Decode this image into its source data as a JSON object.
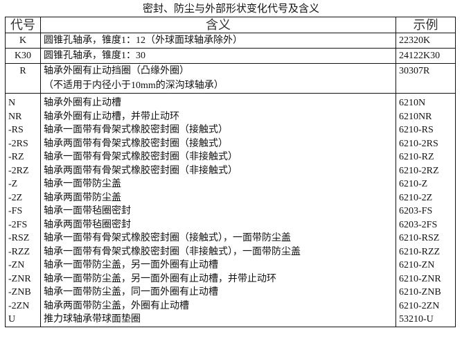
{
  "title": "密封、防尘与外部形状变化代号及含义",
  "headers": {
    "code": "代号",
    "meaning": "含义",
    "example": "示例"
  },
  "top_rows": [
    {
      "code": "K",
      "meaning": [
        "圆锥孔轴承，锥度1：12（外球面球轴承除外）"
      ],
      "example": "22320K"
    },
    {
      "code": "K30",
      "meaning": [
        "圆锥孔轴承，锥度1：30"
      ],
      "example": "24122K30"
    },
    {
      "code": "R",
      "meaning": [
        "轴承外圈有止动挡圈（凸缘外圈）",
        "（不适用于内径小于10mm的深沟球轴承）"
      ],
      "example": "30307R"
    }
  ],
  "rows": [
    {
      "code": "N",
      "meaning": "轴承外圈有止动槽",
      "example": "6210N"
    },
    {
      "code": "NR",
      "meaning": "轴承外圈有止动槽，并带止动环",
      "example": "6210NR"
    },
    {
      "code": "-RS",
      "meaning": "轴承一面带有骨架式橡胶密封圈（接触式）",
      "example": "6210-RS"
    },
    {
      "code": "-2RS",
      "meaning": "轴承两面带有骨架式橡胶密封圈（接触式）",
      "example": "6210-2RS"
    },
    {
      "code": "-RZ",
      "meaning": "轴承一面带有骨架式橡胶密封圈（非接触式）",
      "example": "6210-RZ"
    },
    {
      "code": "-2RZ",
      "meaning": "轴承两面带有骨架式橡胶密封圈（非接触式）",
      "example": "6210-2RZ"
    },
    {
      "code": "-Z",
      "meaning": "轴承一面带防尘盖",
      "example": "6210-Z"
    },
    {
      "code": "-2Z",
      "meaning": "轴承两面带防尘盖",
      "example": "6210-2Z"
    },
    {
      "code": "-FS",
      "meaning": "轴承一面带毡圈密封",
      "example": "6203-FS"
    },
    {
      "code": "-2FS",
      "meaning": "轴承两面带毡圈密封",
      "example": "6203-2FS"
    },
    {
      "code": "-RSZ",
      "meaning": "轴承一面带有骨架式橡胶密封圈（接触式），一面带防尘盖",
      "example": "6210-RSZ"
    },
    {
      "code": "-RZZ",
      "meaning": "轴承一面带有骨架式橡胶密封圈（非接触式），一面带防尘盖",
      "example": "6210-RZZ"
    },
    {
      "code": "-ZN",
      "meaning": "轴承一面带防尘盖，另一面外圈有止动槽",
      "example": "6210-ZN"
    },
    {
      "code": "-ZNR",
      "meaning": "轴承一面带防尘盖，另一面外圈有止动槽，并带止动环",
      "example": "6210-ZNR"
    },
    {
      "code": "-ZNB",
      "meaning": "轴承一面带防尘盖，同一面外圈有止动槽",
      "example": "6210-ZNB"
    },
    {
      "code": "-2ZN",
      "meaning": "轴承两面带防尘盖，外圈有止动槽",
      "example": "6210-2ZN"
    },
    {
      "code": "U",
      "meaning": "推力球轴承带球面垫圈",
      "example": "53210-U"
    }
  ]
}
